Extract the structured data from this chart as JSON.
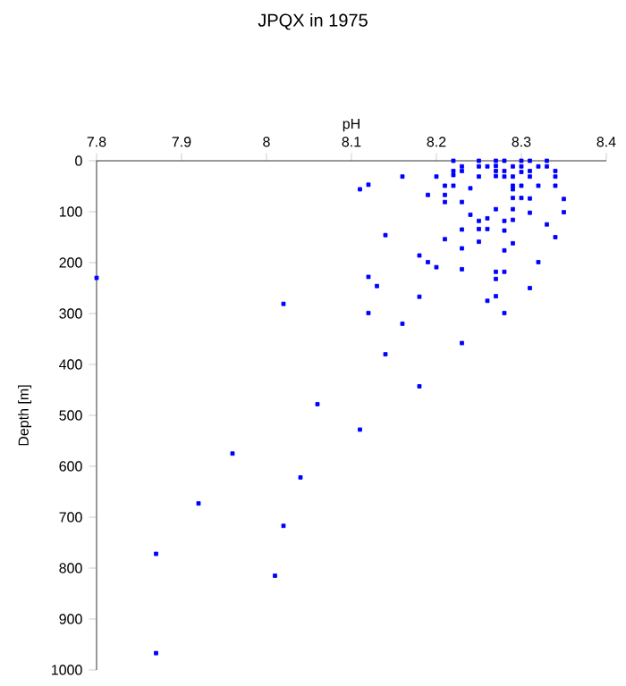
{
  "chart_data": {
    "type": "scatter",
    "title": "JPQX in 1975",
    "xlabel": "pH",
    "ylabel": "Depth [m]",
    "color": "#0000ff",
    "marker": "square",
    "xlim": [
      7.8,
      8.4
    ],
    "xticks": [
      7.8,
      7.9,
      8,
      8.1,
      8.2,
      8.3,
      8.4
    ],
    "ylim": [
      1000,
      0
    ],
    "yticks": [
      0,
      100,
      200,
      300,
      400,
      500,
      600,
      700,
      800,
      900,
      1000
    ],
    "x": [
      7.8,
      8.02,
      8.06,
      7.96,
      8.04,
      7.92,
      8.02,
      7.87,
      8.01,
      7.87,
      8.11,
      8.22,
      8.23,
      8.23,
      8.22,
      8.22,
      8.25,
      8.25,
      8.25,
      8.26,
      8.27,
      8.27,
      8.27,
      8.27,
      8.28,
      8.28,
      8.28,
      8.29,
      8.29,
      8.29,
      8.29,
      8.29,
      8.29,
      8.29,
      8.29,
      8.3,
      8.3,
      8.3,
      8.3,
      8.3,
      8.31,
      8.31,
      8.31,
      8.31,
      8.31,
      8.31,
      8.32,
      8.32,
      8.33,
      8.33,
      8.33,
      8.34,
      8.34,
      8.34,
      8.34,
      8.35,
      8.35,
      8.11,
      8.12,
      8.16,
      8.19,
      8.2,
      8.21,
      8.21,
      8.21,
      8.21,
      8.22,
      8.23,
      8.23,
      8.23,
      8.23,
      8.23,
      8.24,
      8.24,
      8.25,
      8.25,
      8.26,
      8.26,
      8.27,
      8.27,
      8.27,
      8.27,
      8.28,
      8.28,
      8.28,
      8.28,
      8.28,
      8.25,
      8.26,
      8.32,
      8.14,
      8.18,
      8.19,
      8.2,
      8.12,
      8.13,
      8.18,
      8.12,
      8.16,
      8.14,
      8.18
    ],
    "values": [
      230,
      281,
      478,
      575,
      622,
      673,
      717,
      772,
      815,
      967,
      528,
      0,
      11,
      20,
      20,
      28,
      0,
      11,
      31,
      11,
      0,
      10,
      20,
      30,
      0,
      20,
      31,
      11,
      31,
      49,
      56,
      73,
      95,
      116,
      162,
      0,
      11,
      22,
      49,
      73,
      0,
      20,
      31,
      74,
      102,
      250,
      11,
      49,
      0,
      11,
      125,
      20,
      31,
      49,
      150,
      75,
      101,
      56,
      47,
      31,
      67,
      31,
      49,
      67,
      81,
      154,
      49,
      81,
      135,
      172,
      213,
      358,
      54,
      106,
      118,
      134,
      113,
      134,
      95,
      218,
      232,
      266,
      118,
      137,
      176,
      218,
      299,
      159,
      275,
      199,
      146,
      186,
      199,
      209,
      228,
      246,
      267,
      299,
      320,
      380,
      443
    ]
  }
}
